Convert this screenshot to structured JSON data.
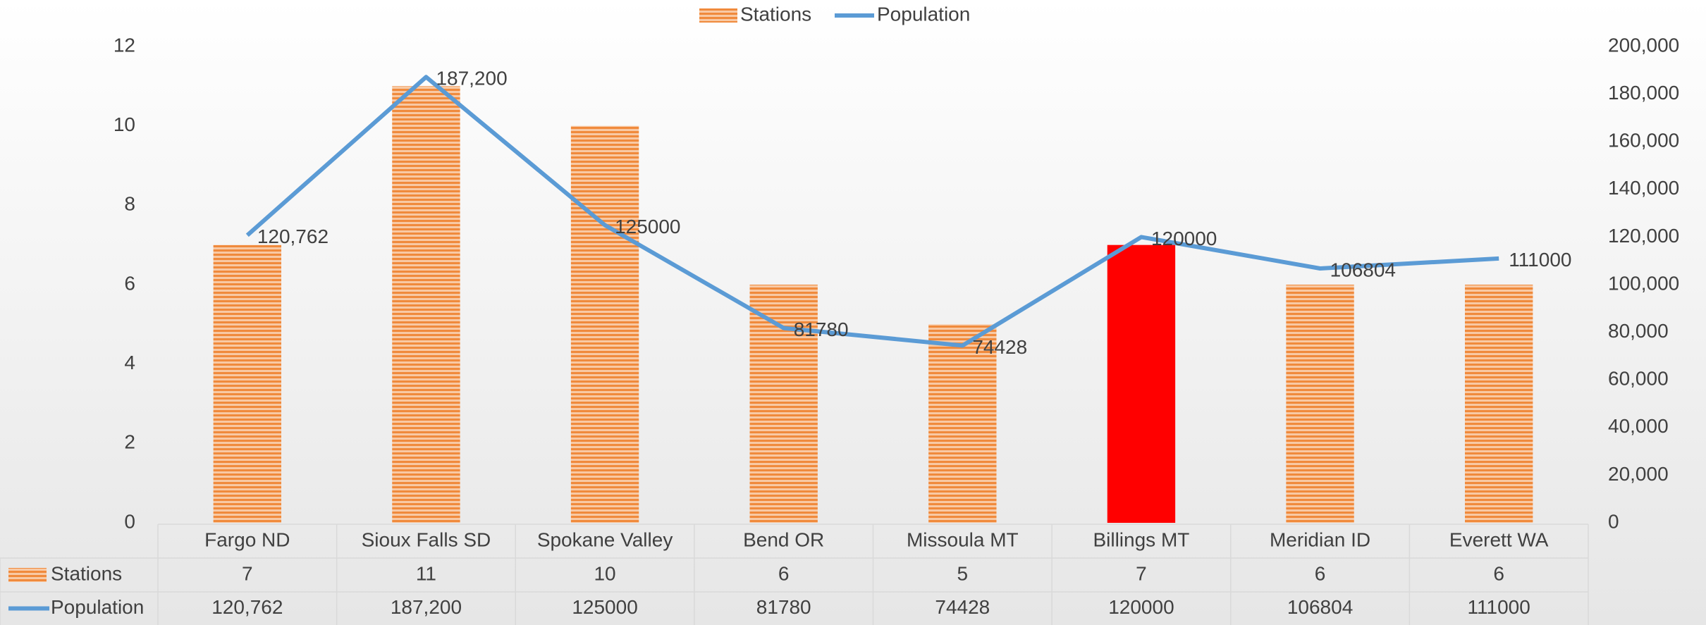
{
  "chart_data": {
    "type": "bar_line_table",
    "categories": [
      "Fargo ND",
      "Sioux Falls SD",
      "Spokane Valley",
      "Bend OR",
      "Missoula MT",
      "Billings MT",
      "Meridian ID",
      "Everett WA"
    ],
    "series": [
      {
        "name": "Stations",
        "type": "bar",
        "color": "#f4a66b",
        "colors": [
          "#f4a66b",
          "#f4a66b",
          "#f4a66b",
          "#f4a66b",
          "#f4a66b",
          "#ff0000",
          "#f4a66b",
          "#f4a66b"
        ],
        "values": [
          7,
          11,
          10,
          6,
          5,
          7,
          6,
          6
        ]
      },
      {
        "name": "Population",
        "type": "line",
        "axis": "y2",
        "color": "#5b9bd5",
        "values": [
          120762,
          187200,
          125000,
          81780,
          74428,
          120000,
          106804,
          111000
        ],
        "value_labels": [
          "120,762",
          "187,200",
          "125000",
          "81780",
          "74428",
          "120000",
          "106804",
          "111000"
        ]
      }
    ],
    "ylim": [
      0,
      12
    ],
    "yticks": [
      0,
      2,
      4,
      6,
      8,
      10,
      12
    ],
    "y2lim": [
      0,
      200000
    ],
    "y2ticks": [
      0,
      {
        "value": 20000,
        "label": "20,000"
      },
      {
        "value": 40000,
        "label": "40,000"
      },
      {
        "value": 60000,
        "label": "60,000"
      },
      {
        "value": 80000,
        "label": "80,000"
      },
      {
        "value": 100000,
        "label": "100,000"
      },
      {
        "value": 120000,
        "label": "120,000"
      },
      {
        "value": 140000,
        "label": "140,000"
      },
      {
        "value": 160000,
        "label": "160,000"
      },
      {
        "value": 180000,
        "label": "180,000"
      },
      {
        "value": 200000,
        "label": "200,000"
      }
    ],
    "legend": "top",
    "data_table": true
  }
}
